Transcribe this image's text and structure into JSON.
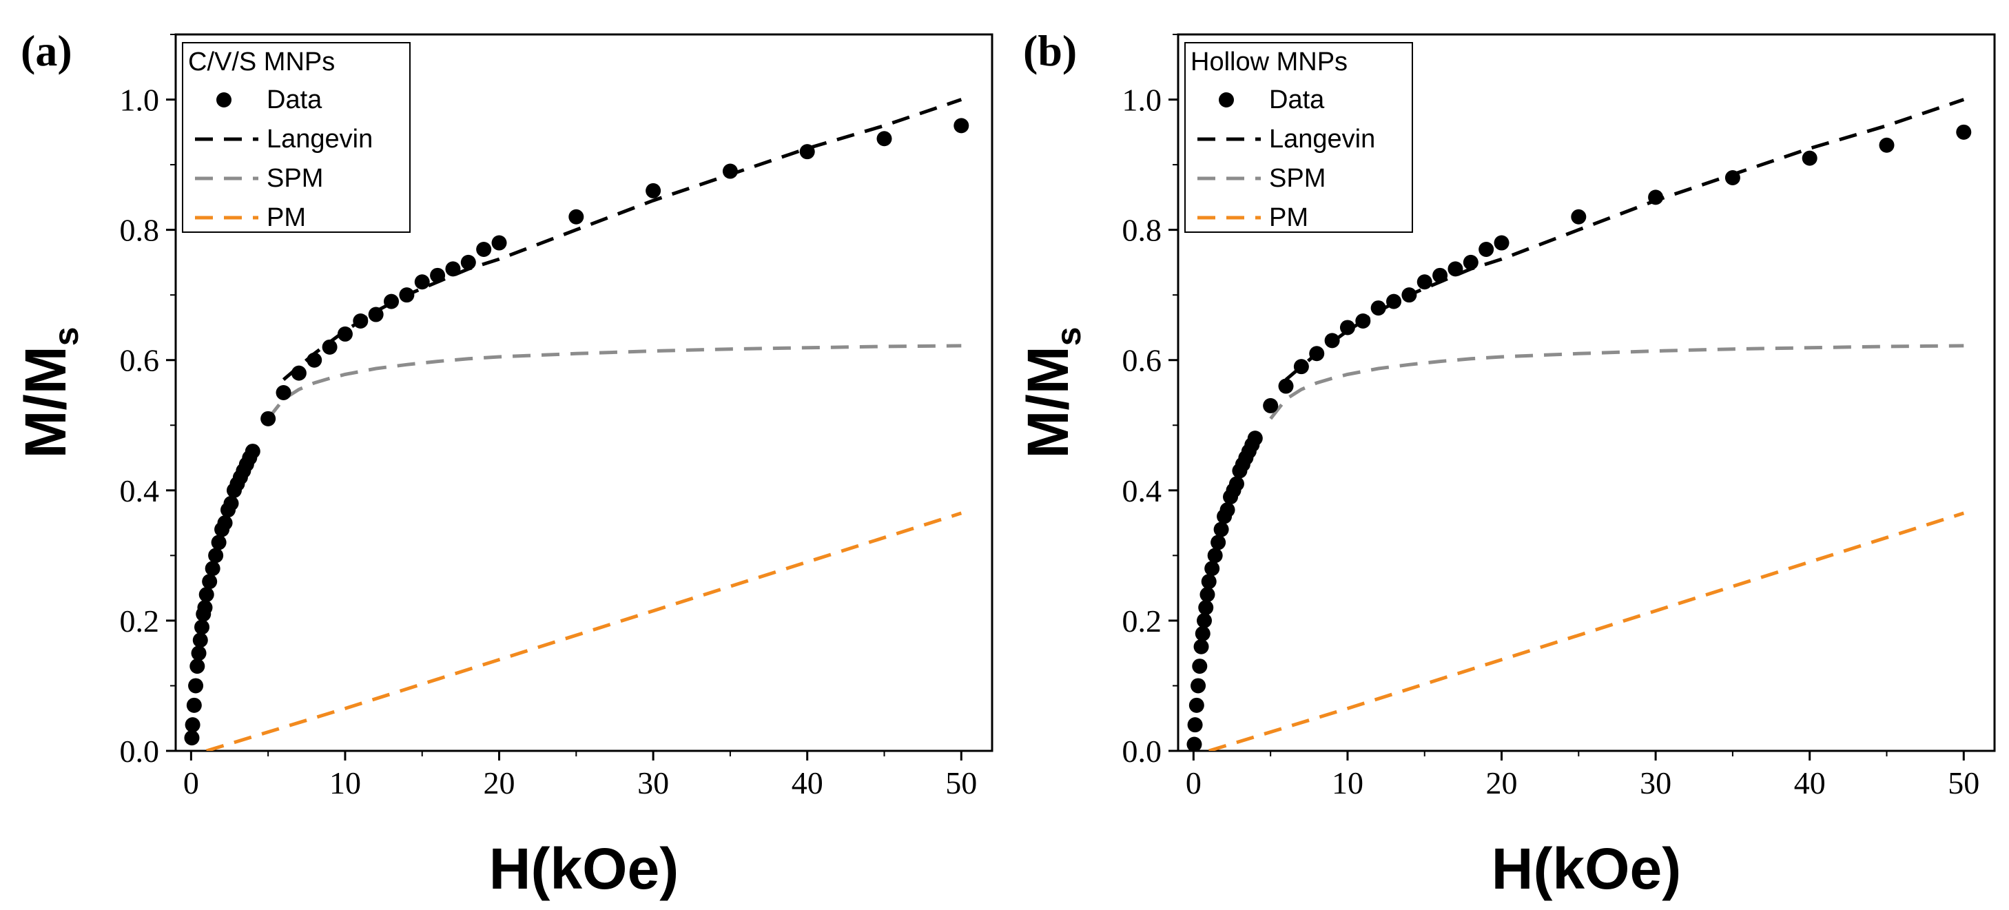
{
  "chart_data": [
    {
      "panel_label": "(a)",
      "type": "scatter",
      "legend_title": "C/V/S MNPs",
      "xlabel": "H(kOe)",
      "ylabel_main": "M/M",
      "ylabel_sub": "s",
      "xlim": [
        -1,
        52
      ],
      "ylim": [
        0,
        1.1
      ],
      "xticks": [
        0,
        10,
        20,
        30,
        40,
        50
      ],
      "yticks": [
        0.0,
        0.2,
        0.4,
        0.6,
        0.8,
        1.0
      ],
      "ytick_labels": [
        "0.0",
        "0.2",
        "0.4",
        "0.6",
        "0.8",
        "1.0"
      ],
      "legend_position": "top-left",
      "series": [
        {
          "name": "Data",
          "style": "markers",
          "color": "#000000",
          "x": [
            0.05,
            0.1,
            0.2,
            0.3,
            0.4,
            0.5,
            0.6,
            0.7,
            0.8,
            0.9,
            1.0,
            1.2,
            1.4,
            1.6,
            1.8,
            2.0,
            2.2,
            2.4,
            2.6,
            2.8,
            3.0,
            3.2,
            3.4,
            3.6,
            3.8,
            4.0,
            5.0,
            6.0,
            7.0,
            8.0,
            9.0,
            10,
            11,
            12,
            13,
            14,
            15,
            16,
            17,
            18,
            19,
            20,
            25,
            30,
            35,
            40,
            45,
            50
          ],
          "y": [
            0.02,
            0.04,
            0.07,
            0.1,
            0.13,
            0.15,
            0.17,
            0.19,
            0.21,
            0.22,
            0.24,
            0.26,
            0.28,
            0.3,
            0.32,
            0.34,
            0.35,
            0.37,
            0.38,
            0.4,
            0.41,
            0.42,
            0.43,
            0.44,
            0.45,
            0.46,
            0.51,
            0.55,
            0.58,
            0.6,
            0.62,
            0.64,
            0.66,
            0.67,
            0.69,
            0.7,
            0.72,
            0.73,
            0.74,
            0.75,
            0.77,
            0.78,
            0.82,
            0.86,
            0.89,
            0.92,
            0.94,
            0.96
          ]
        },
        {
          "name": "Langevin",
          "style": "dashed",
          "color": "#000000",
          "x": [
            6,
            8,
            10,
            12,
            14,
            16,
            18,
            20,
            25,
            30,
            35,
            40,
            45,
            50
          ],
          "y": [
            0.57,
            0.61,
            0.645,
            0.675,
            0.7,
            0.72,
            0.74,
            0.755,
            0.8,
            0.845,
            0.885,
            0.925,
            0.96,
            1.0
          ]
        },
        {
          "name": "SPM",
          "style": "dashed",
          "color": "#8c8c8c",
          "x": [
            5,
            6,
            7,
            8,
            9,
            10,
            12,
            14,
            16,
            18,
            20,
            25,
            30,
            35,
            40,
            45,
            50
          ],
          "y": [
            0.51,
            0.54,
            0.555,
            0.565,
            0.572,
            0.578,
            0.587,
            0.593,
            0.598,
            0.602,
            0.605,
            0.61,
            0.614,
            0.617,
            0.619,
            0.621,
            0.622
          ]
        },
        {
          "name": "PM",
          "style": "dashed",
          "color": "#f28a1e",
          "x": [
            1,
            10,
            20,
            30,
            40,
            50
          ],
          "y": [
            0.0,
            0.065,
            0.14,
            0.215,
            0.29,
            0.365
          ]
        }
      ]
    },
    {
      "panel_label": "(b)",
      "type": "scatter",
      "legend_title": "Hollow MNPs",
      "xlabel": "H(kOe)",
      "ylabel_main": "M/M",
      "ylabel_sub": "s",
      "xlim": [
        -1,
        52
      ],
      "ylim": [
        0,
        1.1
      ],
      "xticks": [
        0,
        10,
        20,
        30,
        40,
        50
      ],
      "yticks": [
        0.0,
        0.2,
        0.4,
        0.6,
        0.8,
        1.0
      ],
      "ytick_labels": [
        "0.0",
        "0.2",
        "0.4",
        "0.6",
        "0.8",
        "1.0"
      ],
      "legend_position": "top-left",
      "series": [
        {
          "name": "Data",
          "style": "markers",
          "color": "#000000",
          "x": [
            0.05,
            0.1,
            0.2,
            0.3,
            0.4,
            0.5,
            0.6,
            0.7,
            0.8,
            0.9,
            1.0,
            1.2,
            1.4,
            1.6,
            1.8,
            2.0,
            2.2,
            2.4,
            2.6,
            2.8,
            3.0,
            3.2,
            3.4,
            3.6,
            3.8,
            4.0,
            5.0,
            6.0,
            7.0,
            8.0,
            9.0,
            10,
            11,
            12,
            13,
            14,
            15,
            16,
            17,
            18,
            19,
            20,
            25,
            30,
            35,
            40,
            45,
            50
          ],
          "y": [
            0.01,
            0.04,
            0.07,
            0.1,
            0.13,
            0.16,
            0.18,
            0.2,
            0.22,
            0.24,
            0.26,
            0.28,
            0.3,
            0.32,
            0.34,
            0.36,
            0.37,
            0.39,
            0.4,
            0.41,
            0.43,
            0.44,
            0.45,
            0.46,
            0.47,
            0.48,
            0.53,
            0.56,
            0.59,
            0.61,
            0.63,
            0.65,
            0.66,
            0.68,
            0.69,
            0.7,
            0.72,
            0.73,
            0.74,
            0.75,
            0.77,
            0.78,
            0.82,
            0.85,
            0.88,
            0.91,
            0.93,
            0.95
          ]
        },
        {
          "name": "Langevin",
          "style": "dashed",
          "color": "#000000",
          "x": [
            6,
            8,
            10,
            12,
            14,
            16,
            18,
            20,
            25,
            30,
            35,
            40,
            45,
            50
          ],
          "y": [
            0.57,
            0.61,
            0.645,
            0.675,
            0.7,
            0.72,
            0.74,
            0.755,
            0.8,
            0.845,
            0.885,
            0.925,
            0.96,
            1.0
          ]
        },
        {
          "name": "SPM",
          "style": "dashed",
          "color": "#8c8c8c",
          "x": [
            5,
            6,
            7,
            8,
            9,
            10,
            12,
            14,
            16,
            18,
            20,
            25,
            30,
            35,
            40,
            45,
            50
          ],
          "y": [
            0.51,
            0.54,
            0.555,
            0.565,
            0.572,
            0.578,
            0.587,
            0.593,
            0.598,
            0.602,
            0.605,
            0.61,
            0.614,
            0.617,
            0.619,
            0.621,
            0.622
          ]
        },
        {
          "name": "PM",
          "style": "dashed",
          "color": "#f28a1e",
          "x": [
            1,
            10,
            20,
            30,
            40,
            50
          ],
          "y": [
            0.0,
            0.065,
            0.14,
            0.215,
            0.29,
            0.365
          ]
        }
      ]
    }
  ]
}
